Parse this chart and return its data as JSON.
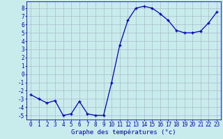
{
  "hours": [
    0,
    1,
    2,
    3,
    4,
    5,
    6,
    7,
    8,
    9,
    10,
    11,
    12,
    13,
    14,
    15,
    16,
    17,
    18,
    19,
    20,
    21,
    22,
    23
  ],
  "temps": [
    -2.5,
    -3.0,
    -3.5,
    -3.2,
    -5.0,
    -4.8,
    -3.3,
    -4.8,
    -5.0,
    -5.0,
    -1.0,
    3.5,
    6.5,
    8.0,
    8.2,
    8.0,
    7.3,
    6.5,
    5.3,
    5.0,
    5.0,
    5.2,
    6.2,
    7.5
  ],
  "xlabel": "Graphe des températures (°c)",
  "ylim": [
    -5.5,
    8.8
  ],
  "xlim": [
    -0.5,
    23.5
  ],
  "line_color": "#0000bb",
  "marker": "+",
  "bg_color": "#c8ecec",
  "grid_color": "#aabccc",
  "axis_color": "#0000bb",
  "tick_fontsize": 5.5,
  "xlabel_fontsize": 6.5,
  "yticks": [
    -5,
    -4,
    -3,
    -2,
    -1,
    0,
    1,
    2,
    3,
    4,
    5,
    6,
    7,
    8
  ],
  "xticks": [
    0,
    1,
    2,
    3,
    4,
    5,
    6,
    7,
    8,
    9,
    10,
    11,
    12,
    13,
    14,
    15,
    16,
    17,
    18,
    19,
    20,
    21,
    22,
    23
  ]
}
